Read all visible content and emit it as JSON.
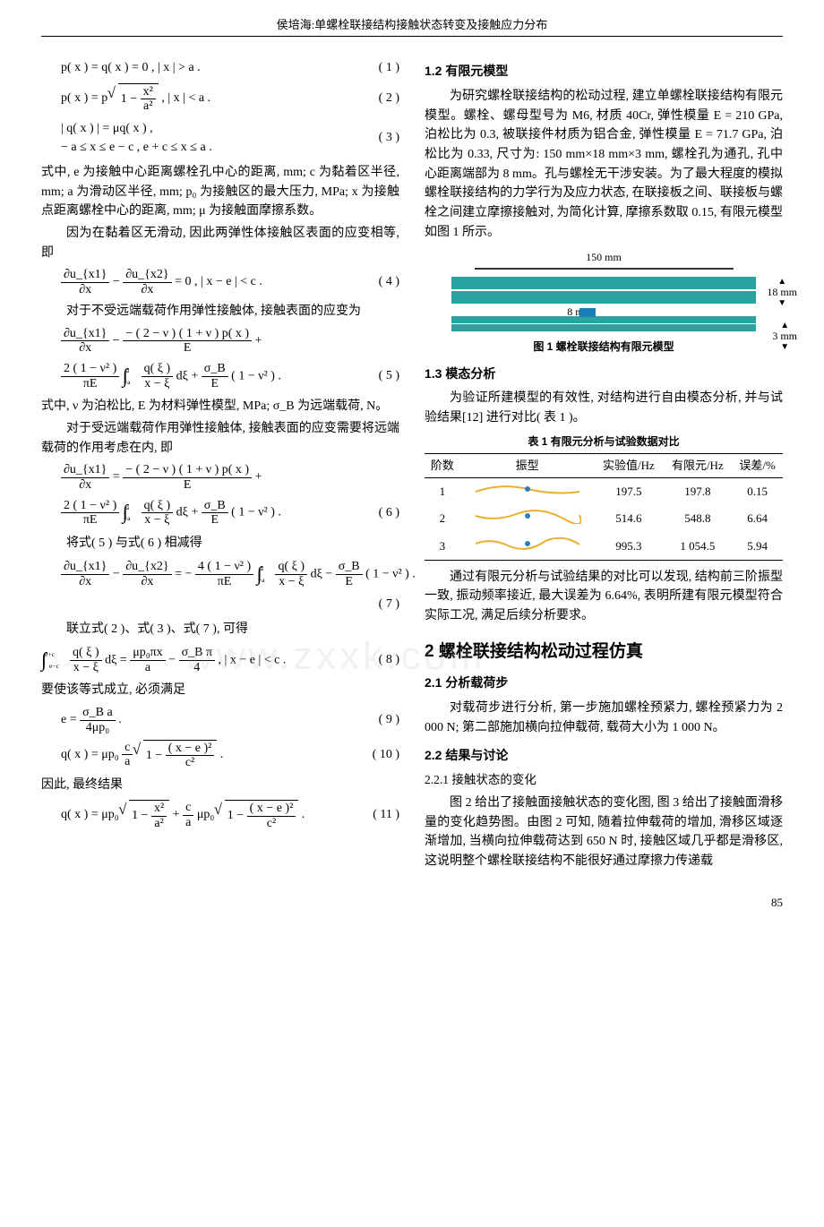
{
  "header": "侯培海:单螺栓联接结构接触状态转变及接触应力分布",
  "left": {
    "eq1": "p( x ) = q( x ) = 0 ,  | x | > a .",
    "eq1_num": "( 1 )",
    "eq2_pre": "p( x ) = p",
    "eq2_root_num": "1 − ",
    "eq2_root_frac_num": "x²",
    "eq2_root_frac_den": "a²",
    "eq2_post": " ,  | x | < a .",
    "eq2_num": "( 2 )",
    "eq3_line1": "| q( x ) | = μq( x ) ,",
    "eq3_line2": "− a ≤ x ≤ e − c , e + c ≤ x ≤ a .",
    "eq3_num": "( 3 )",
    "p1": "式中, e 为接触中心距离螺栓孔中心的距离, mm; c 为黏着区半径, mm; a 为滑动区半径, mm; p₀ 为接触区的最大压力, MPa; x 为接触点距离螺栓中心的距离, mm; μ 为接触面摩擦系数。",
    "p2": "因为在黏着区无滑动, 因此两弹性体接触区表面的应变相等, 即",
    "eq4_l_num": "∂u_{x1}",
    "eq4_l_den": "∂x",
    "eq4_r_num": "∂u_{x2}",
    "eq4_r_den": "∂x",
    "eq4_mid": " − ",
    "eq4_post": " = 0 ,  | x − e | < c .",
    "eq4_num": "( 4 )",
    "p3": "对于不受远端载荷作用弹性接触体, 接触表面的应变为",
    "eq5_a_num": "∂u_{x1}",
    "eq5_a_den": "∂x",
    "eq5_a_mid": " − ",
    "eq5_a_b_num": "− ( 2 − ν ) ( 1 + ν ) p( x )",
    "eq5_a_b_den": "E",
    "eq5_a_post": " +",
    "eq5_b_pre_num": "2 ( 1 − ν² )",
    "eq5_b_pre_den": "πE",
    "eq5_b_int_top": "a",
    "eq5_b_int_bot": "−a",
    "eq5_b_q_num": "q( ξ )",
    "eq5_b_q_den": "x − ξ",
    "eq5_b_mid": " dξ + ",
    "eq5_b_s_num": "σ_B",
    "eq5_b_s_den": "E",
    "eq5_b_post": " ( 1 − ν² ) .",
    "eq5_num": "( 5 )",
    "p4": "式中, ν 为泊松比, E 为材料弹性模型, MPa; σ_B 为远端载荷, N。",
    "p5": "对于受远端载荷作用弹性接触体, 接触表面的应变需要将远端载荷的作用考虑在内, 即",
    "eq6_num": "( 6 )",
    "p6": "将式( 5 ) 与式( 6 ) 相减得",
    "eq7_pre_l_num": "∂u_{x1}",
    "eq7_pre_l_den": "∂x",
    "eq7_pre_r_num": "∂u_{x2}",
    "eq7_pre_r_den": "∂x",
    "eq7_eq": " = − ",
    "eq7_coef_num": "4 ( 1 − ν² )",
    "eq7_coef_den": "πE",
    "eq7_tail": " ( 1 − ν² ) .",
    "eq7_num": "( 7 )",
    "p7": "联立式( 2 )、式( 3 )、式( 7 ), 可得",
    "eq8_int_top": "e+c",
    "eq8_int_bot": "e−c",
    "eq8_q_num": "q( ξ )",
    "eq8_q_den": "x − ξ",
    "eq8_mid": " dξ = ",
    "eq8_a_num": "μp₀πx",
    "eq8_a_den": "a",
    "eq8_b_num": "σ_B π",
    "eq8_b_den": "4",
    "eq8_post": " ,  | x − e | < c .",
    "eq8_num": "( 8 )",
    "p8": "要使该等式成立, 必须满足",
    "eq9_pre": "e = ",
    "eq9_num_f": "σ_B a",
    "eq9_den_f": "4μp₀",
    "eq9_post": " .",
    "eq9_num": "( 9 )",
    "eq10_pre": "q( x ) = μp₀ ",
    "eq10_frac_num": "c",
    "eq10_frac_den": "a",
    "eq10_root_num": "( x − e )²",
    "eq10_root_den": "c²",
    "eq10_post": " .",
    "eq10_num": "( 10 )",
    "p9": "因此, 最终结果",
    "eq11_pre": "q( x ) = μp₀ ",
    "eq11_r1_num": "x²",
    "eq11_r1_den": "a²",
    "eq11_mid": " + ",
    "eq11_f_num": "c",
    "eq11_f_den": "a",
    "eq11_mid2": " μp₀ ",
    "eq11_r2_num": "( x − e )²",
    "eq11_r2_den": "c²",
    "eq11_post": " .",
    "eq11_num": "( 11 )"
  },
  "right": {
    "s12": "1.2  有限元模型",
    "p1": "为研究螺栓联接结构的松动过程, 建立单螺栓联接结构有限元模型。螺栓、螺母型号为 M6, 材质 40Cr, 弹性模量 E = 210 GPa, 泊松比为 0.3, 被联接件材质为铝合金, 弹性模量 E = 71.7 GPa, 泊松比为 0.33, 尺寸为: 150 mm×18 mm×3 mm, 螺栓孔为通孔, 孔中心距离端部为 8 mm。孔与螺栓无干涉安装。为了最大程度的模拟螺栓联接结构的力学行为及应力状态, 在联接板之间、联接板与螺栓之间建立摩擦接触对, 为简化计算, 摩擦系数取 0.15, 有限元模型如图 1 所示。",
    "fig1": {
      "dim_w": "150 mm",
      "dim_h": "18 mm",
      "dim_gap": "8 mm",
      "dim_t": "3 mm",
      "colors": {
        "top": "#2aa3a0",
        "bottom": "#2aa3a0",
        "joint": "#d8d840",
        "bolt": "#1a7fb5"
      },
      "caption": "图 1  螺栓联接结构有限元模型"
    },
    "s13": "1.3  模态分析",
    "p2": "为验证所建模型的有效性, 对结构进行自由模态分析, 并与试验结果[12] 进行对比( 表 1 )。",
    "tbl1_caption": "表 1  有限元分析与试验数据对比",
    "tbl1": {
      "cols": [
        "阶数",
        "振型",
        "实验值/Hz",
        "有限元/Hz",
        "误差/%"
      ],
      "rows": [
        [
          "1",
          "mode-shape-1",
          "197.5",
          "197.8",
          "0.15"
        ],
        [
          "2",
          "mode-shape-2",
          "514.6",
          "548.8",
          "6.64"
        ],
        [
          "3",
          "mode-shape-3",
          "995.3",
          "1 054.5",
          "5.94"
        ]
      ],
      "mode_line_color": "#e8b030",
      "mode_dot_color": "#2a7fc0"
    },
    "p3": "通过有限元分析与试验结果的对比可以发现, 结构前三阶振型一致, 振动频率接近, 最大误差为 6.64%, 表明所建有限元模型符合实际工况, 满足后续分析要求。",
    "s2": "2  螺栓联接结构松动过程仿真",
    "s21": "2.1  分析载荷步",
    "p4": "对载荷步进行分析, 第一步施加螺栓预紧力, 螺栓预紧力为 2 000 N; 第二部施加横向拉伸载荷, 载荷大小为 1 000 N。",
    "s22": "2.2  结果与讨论",
    "s221": "2.2.1  接触状态的变化",
    "p5": "图 2 给出了接触面接触状态的变化图, 图 3 给出了接触面滑移量的变化趋势图。由图 2 可知, 随着拉伸载荷的增加, 滑移区域逐渐增加, 当横向拉伸载荷达到 650 N 时, 接触区域几乎都是滑移区, 这说明整个螺栓联接结构不能很好通过摩擦力传递载"
  },
  "page_num": "85",
  "watermark": "www.zxxk.com"
}
